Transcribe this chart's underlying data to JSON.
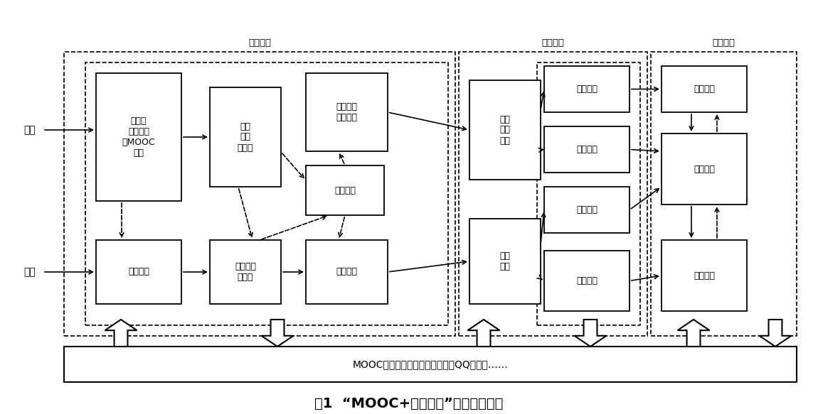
{
  "title": "图1  “MOOC+翻转课堂”融合教学模式",
  "platform_text": "MOOC平台、学校网络教学平台、QQ、邮箱……",
  "bg_color": "#ffffff",
  "fig_width": 11.5,
  "fig_height": 5.83,
  "teacher": "教师",
  "student": "学生",
  "phase1": "课前阶段",
  "phase2": "课中阶段",
  "phase3": "课后阶段",
  "box1": "建设或\n利用已有\n的MOOC\n资源",
  "box2": "自主学习",
  "box3": "布置\n作业\n或测验",
  "box4": "完成作业\n或测验",
  "box5": "学情分析",
  "box6": "组织讨论\n答疑反馈",
  "box7": "提问交流",
  "box8": "组织\n课堂\n活动",
  "box9": "知识\n内化",
  "box10": "疑难讲解",
  "box11": "协作学习",
  "box12": "成果交流",
  "box13": "自主探究",
  "box14": "反思改进",
  "box15": "交流互动",
  "box16": "拓展学习"
}
